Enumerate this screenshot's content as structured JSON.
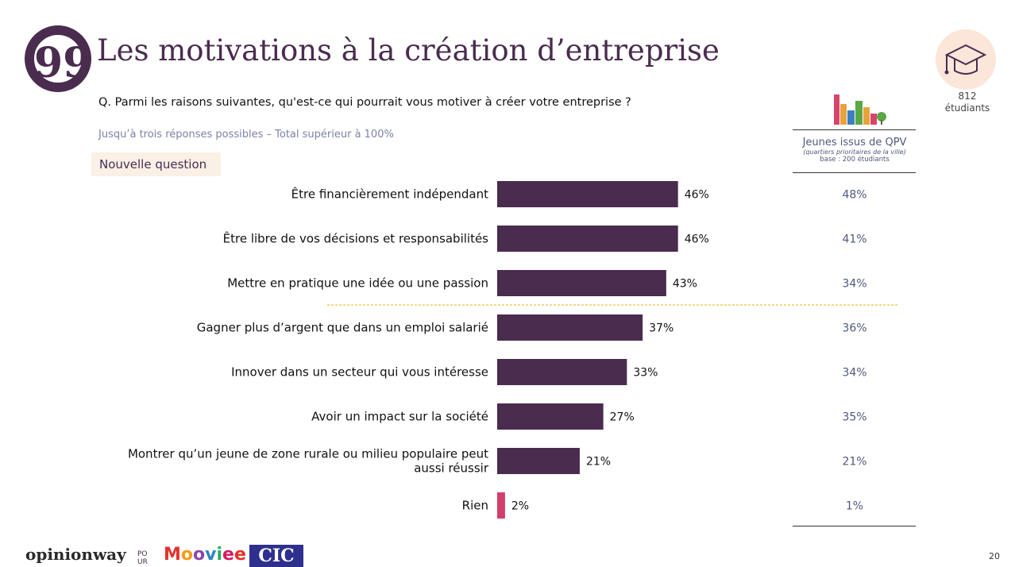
{
  "header": {
    "title": "Les motivations à la création d’entreprise",
    "question": "Q. Parmi les raisons suivantes, qu'est-ce qui pourrait vous motiver à créer votre entreprise ?",
    "note": "Jusqu’à trois réponses possibles – Total supérieur à 100%",
    "badge": "Nouvelle question",
    "quote_glyph": "99"
  },
  "sample": {
    "count": "812",
    "unit": "étudiants"
  },
  "qpv": {
    "title": "Jeunes issus de QPV",
    "subtitle": "(quartiers prioritaires de la ville)",
    "base": "base : 200 étudiants"
  },
  "chart_data": {
    "type": "bar",
    "orientation": "horizontal",
    "title": "Les motivations à la création d’entreprise",
    "categories": [
      [
        "Être financièrement indépendant"
      ],
      [
        "Être libre de vos décisions et responsabilités"
      ],
      [
        "Mettre en pratique une idée ou une passion"
      ],
      [
        "Gagner plus d’argent que dans un emploi salarié"
      ],
      [
        "Innover dans un secteur qui vous intéresse"
      ],
      [
        "Avoir un impact sur la société"
      ],
      [
        "Montrer qu’un jeune de zone rurale ou milieu populaire peut",
        "aussi réussir"
      ],
      [
        "Rien"
      ]
    ],
    "values": [
      46,
      46,
      43,
      37,
      33,
      27,
      21,
      2
    ],
    "value_labels": [
      "46%",
      "46%",
      "43%",
      "37%",
      "33%",
      "27%",
      "21%",
      "2%"
    ],
    "qpv_values": [
      "48%",
      "41%",
      "34%",
      "36%",
      "34%",
      "35%",
      "21%",
      "1%"
    ],
    "unit": "%",
    "colors": {
      "bar": "#4a2c4f",
      "bar_rien": "#d23f6a",
      "separator": "#f0c040"
    },
    "separator_after_index": 2
  },
  "footer": {
    "opinionway": "opinionway",
    "pour_top": "PO",
    "pour_bottom": "UR",
    "mooviee": "Mooviee",
    "cic": "CIC",
    "page": "20"
  }
}
